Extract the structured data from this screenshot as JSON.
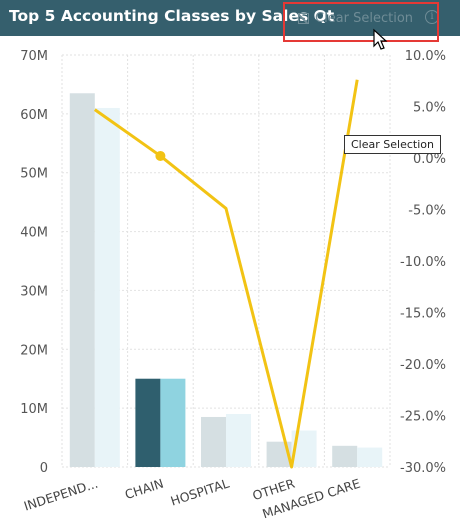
{
  "header": {
    "title": "Top 5 Accounting Classes by Sales Qt",
    "clear_selection_label": "Clear Selection",
    "info_icon": "i"
  },
  "tooltip": {
    "text": "Clear Selection"
  },
  "colors": {
    "header_bg": "#355f6d",
    "bar_grey": "#d5dfe2",
    "bar_light": "#e8f4f8",
    "bar_selected_dark": "#2f5f6e",
    "bar_selected_light": "#8fd3e0",
    "line": "#f2c314",
    "highlight": "#e53935"
  },
  "chart_data": {
    "type": "bar",
    "categories": [
      "INDEPEND...",
      "CHAIN",
      "HOSPITAL",
      "OTHER",
      "MANAGED CARE"
    ],
    "selected_category": "CHAIN",
    "series": [
      {
        "values": [
          63.5,
          15.0,
          8.5,
          4.3,
          3.6
        ],
        "axis": "left"
      },
      {
        "values": [
          61.0,
          15.0,
          9.0,
          6.2,
          3.3
        ],
        "axis": "left"
      }
    ],
    "line_series": {
      "values": [
        4.7,
        0.2,
        -4.9,
        -30.0,
        7.6
      ],
      "axis": "right",
      "marker_index": 1
    },
    "left_axis": {
      "ticks": [
        "0",
        "10M",
        "20M",
        "30M",
        "40M",
        "50M",
        "60M",
        "70M"
      ],
      "min": 0,
      "max": 70
    },
    "right_axis": {
      "ticks": [
        "10.0%",
        "5.0%",
        "0.0%",
        "-5.0%",
        "-10.0%",
        "-15.0%",
        "-20.0%",
        "-25.0%",
        "-30.0%"
      ],
      "min": -30,
      "max": 10
    },
    "grid": true
  }
}
